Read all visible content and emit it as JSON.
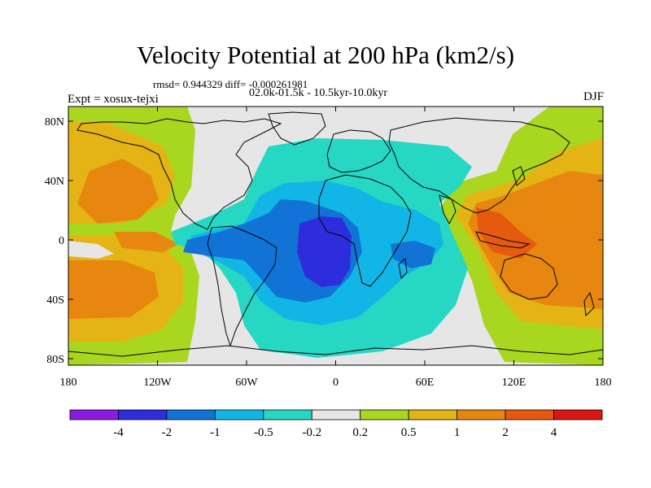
{
  "title": "Velocity Potential at 200 hPa (km2/s)",
  "stats_line": "rmsd= 0.944329 diff= -0.000261981",
  "period_line": "02.0k-01.5k - 10.5kyr-10.0kyr",
  "experiment": "Expt = xosux-tejxi",
  "season": "DJF",
  "lat_ticks": [
    "80N",
    "40N",
    "0",
    "40S",
    "80S"
  ],
  "lon_ticks": [
    "180",
    "120W",
    "60W",
    "0",
    "60E",
    "120E",
    "180"
  ],
  "colorbar": {
    "colors": [
      "#8a1be0",
      "#2d2ddc",
      "#1273d6",
      "#11b6e6",
      "#26d8c4",
      "#e6e6e6",
      "#a9d61f",
      "#e3b414",
      "#e8870f",
      "#e65a10",
      "#dc1515"
    ],
    "labels": [
      "-4",
      "-2",
      "-1",
      "-0.5",
      "-0.2",
      "0.2",
      "0.5",
      "1",
      "2",
      "4"
    ]
  }
}
